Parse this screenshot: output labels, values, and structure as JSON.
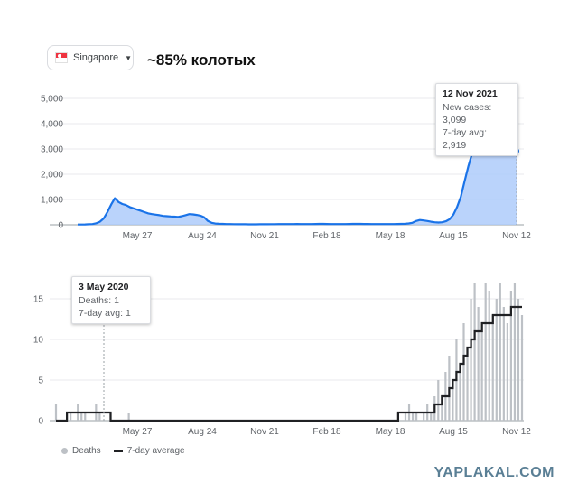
{
  "country_selector": {
    "label": "Singapore",
    "flag_icon": "singapore-flag-icon",
    "caret_icon": "caret-down-icon"
  },
  "annotation": "~85% колотых",
  "watermark": "YAPLAKAL.COM",
  "chart_data": [
    {
      "type": "area",
      "series": [
        {
          "name": "New cases",
          "values": [
            10,
            12,
            15,
            20,
            30,
            60,
            120,
            250,
            500,
            800,
            1050,
            900,
            820,
            780,
            700,
            650,
            600,
            550,
            500,
            450,
            420,
            400,
            380,
            350,
            340,
            330,
            320,
            310,
            340,
            380,
            420,
            410,
            390,
            360,
            300,
            150,
            80,
            50,
            40,
            35,
            30,
            28,
            25,
            22,
            20,
            20,
            18,
            18,
            18,
            20,
            20,
            22,
            25,
            25,
            28,
            28,
            30,
            30,
            30,
            32,
            30,
            28,
            28,
            30,
            32,
            35,
            35,
            32,
            30,
            30,
            28,
            28,
            30,
            32,
            35,
            35,
            35,
            33,
            32,
            30,
            30,
            30,
            30,
            28,
            28,
            30,
            32,
            35,
            40,
            55,
            80,
            150,
            190,
            170,
            150,
            120,
            100,
            90,
            100,
            140,
            220,
            400,
            700,
            1100,
            1700,
            2300,
            2800,
            3250,
            3500,
            3600,
            3700,
            3680,
            3550,
            3400,
            3350,
            3250,
            3150,
            3100,
            2919
          ]
        }
      ],
      "highlight": {
        "date": "12 Nov 2021",
        "lines": [
          "New cases: 3,099",
          "7-day avg: 2,919"
        ]
      },
      "y_ticks": [
        "0",
        "1,000",
        "2,000",
        "3,000",
        "4,000",
        "5,000"
      ],
      "ylim": [
        0,
        5000
      ],
      "x_ticks": [
        "May 27",
        "Aug 24",
        "Nov 21",
        "Feb 18",
        "May 18",
        "Aug 15",
        "Nov 12"
      ],
      "color": "#1a73e8",
      "fill_color": "#aecbfa"
    },
    {
      "type": "bar",
      "bars": [
        2,
        0,
        0,
        1,
        1,
        0,
        2,
        1,
        1,
        0,
        0,
        2,
        1,
        0,
        0,
        1,
        0,
        0,
        0,
        0,
        1,
        0,
        0,
        0,
        0,
        0,
        0,
        0,
        0,
        0,
        0,
        0,
        0,
        0,
        0,
        0,
        0,
        0,
        0,
        0,
        0,
        0,
        0,
        0,
        0,
        0,
        0,
        0,
        0,
        0,
        0,
        0,
        0,
        0,
        0,
        0,
        0,
        0,
        0,
        0,
        0,
        0,
        0,
        0,
        0,
        0,
        0,
        0,
        0,
        0,
        0,
        0,
        0,
        0,
        0,
        0,
        0,
        0,
        0,
        0,
        0,
        0,
        0,
        0,
        0,
        0,
        0,
        0,
        0,
        0,
        0,
        0,
        0,
        0,
        1,
        0,
        1,
        2,
        1,
        1,
        0,
        1,
        2,
        1,
        3,
        5,
        2,
        6,
        8,
        5,
        10,
        7,
        12,
        9,
        15,
        17,
        14,
        11,
        17,
        16,
        13,
        15,
        17,
        14,
        12,
        16,
        17,
        15,
        13
      ],
      "series": [
        {
          "name": "7-day average",
          "values": [
            0,
            0,
            0,
            1,
            1,
            1,
            1,
            1,
            1,
            1,
            1,
            1,
            1,
            1,
            1,
            0,
            0,
            0,
            0,
            0,
            0,
            0,
            0,
            0,
            0,
            0,
            0,
            0,
            0,
            0,
            0,
            0,
            0,
            0,
            0,
            0,
            0,
            0,
            0,
            0,
            0,
            0,
            0,
            0,
            0,
            0,
            0,
            0,
            0,
            0,
            0,
            0,
            0,
            0,
            0,
            0,
            0,
            0,
            0,
            0,
            0,
            0,
            0,
            0,
            0,
            0,
            0,
            0,
            0,
            0,
            0,
            0,
            0,
            0,
            0,
            0,
            0,
            0,
            0,
            0,
            0,
            0,
            0,
            0,
            0,
            0,
            0,
            0,
            0,
            0,
            0,
            0,
            0,
            0,
            1,
            1,
            1,
            1,
            1,
            1,
            1,
            1,
            1,
            1,
            2,
            2,
            3,
            3,
            4,
            5,
            6,
            7,
            8,
            9,
            10,
            11,
            11,
            12,
            12,
            12,
            13,
            13,
            13,
            13,
            13,
            14,
            14,
            14,
            14
          ]
        }
      ],
      "highlight": {
        "date": "3 May 2020",
        "lines": [
          "Deaths: 1",
          "7-day avg: 1"
        ]
      },
      "y_ticks": [
        "0",
        "5",
        "10",
        "15"
      ],
      "ylim": [
        0,
        18
      ],
      "x_ticks": [
        "May 27",
        "Aug 24",
        "Nov 21",
        "Feb 18",
        "May 18",
        "Aug 15",
        "Nov 12"
      ],
      "legend": {
        "deaths": "Deaths",
        "avg": "7-day average"
      },
      "bar_color": "#bdc1c6",
      "line_color": "#202124"
    }
  ]
}
